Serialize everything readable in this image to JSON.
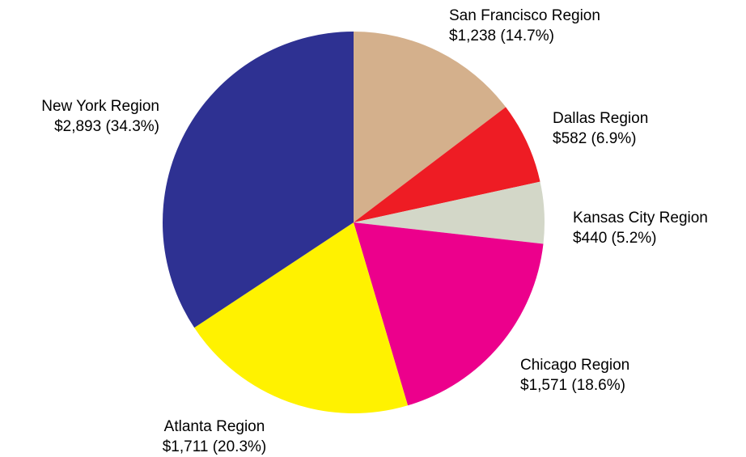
{
  "chart_data": {
    "type": "pie",
    "categories": [
      "San Francisco Region",
      "Dallas Region",
      "Kansas City Region",
      "Chicago Region",
      "Atlanta Region",
      "New York Region"
    ],
    "values": [
      1238,
      582,
      440,
      1571,
      1711,
      2893
    ],
    "value_labels": [
      "$1,238 (14.7%)",
      "$582 (6.9%)",
      "$440 (5.2%)",
      "$1,571 (18.6%)",
      "$1,711 (20.3%)",
      "$2,893 (34.3%)"
    ],
    "colors": [
      "#d4b08c",
      "#ee1c24",
      "#d3d7c8",
      "#ec008c",
      "#fff200",
      "#2e3192"
    ]
  }
}
